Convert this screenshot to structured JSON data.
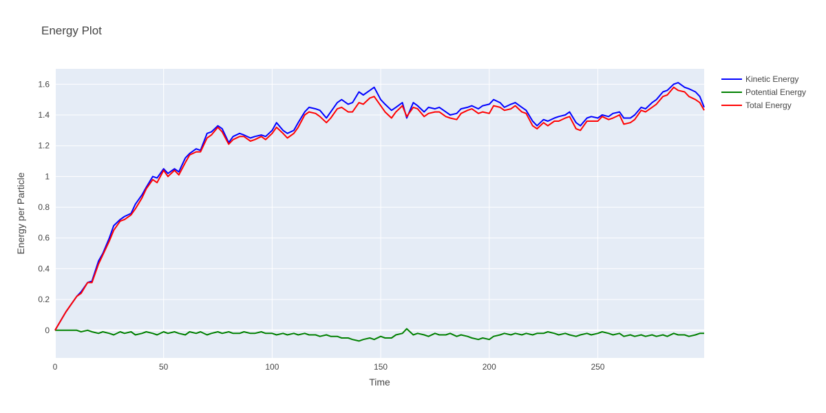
{
  "chart_data": {
    "type": "line",
    "title": "Energy Plot",
    "xlabel": "Time",
    "ylabel": "Energy per Particle",
    "xlim": [
      0,
      299
    ],
    "ylim": [
      -0.18,
      1.7
    ],
    "x_ticks": [
      0,
      50,
      100,
      150,
      200,
      250
    ],
    "x_tick_labels": [
      "0",
      "50",
      "100",
      "150",
      "200",
      "250"
    ],
    "y_ticks": [
      0,
      0.2,
      0.4,
      0.6,
      0.8,
      1.0,
      1.2,
      1.4,
      1.6
    ],
    "y_tick_labels": [
      "0",
      "0.2",
      "0.4",
      "0.6",
      "0.8",
      "1",
      "1.2",
      "1.4",
      "1.6"
    ],
    "grid": true,
    "legend_position": "top-right",
    "background_color": "#e5ecf6",
    "series": [
      {
        "name": "Kinetic Energy",
        "color": "#0000ff",
        "x": [
          0,
          5,
          10,
          12,
          15,
          17,
          20,
          22,
          25,
          27,
          30,
          32,
          35,
          37,
          40,
          42,
          45,
          47,
          50,
          52,
          55,
          57,
          60,
          62,
          65,
          67,
          70,
          72,
          75,
          77,
          80,
          82,
          85,
          87,
          90,
          92,
          95,
          97,
          100,
          102,
          105,
          107,
          110,
          112,
          115,
          117,
          120,
          122,
          125,
          127,
          130,
          132,
          135,
          137,
          140,
          142,
          145,
          147,
          150,
          152,
          155,
          157,
          160,
          162,
          165,
          167,
          170,
          172,
          175,
          177,
          180,
          182,
          185,
          187,
          190,
          192,
          195,
          197,
          200,
          202,
          205,
          207,
          210,
          212,
          215,
          217,
          220,
          222,
          225,
          227,
          230,
          232,
          235,
          237,
          240,
          242,
          245,
          247,
          250,
          252,
          255,
          257,
          260,
          262,
          265,
          267,
          270,
          272,
          275,
          277,
          280,
          282,
          285,
          287,
          290,
          292,
          295,
          297,
          299
        ],
        "y": [
          0,
          0.12,
          0.22,
          0.25,
          0.31,
          0.32,
          0.45,
          0.5,
          0.6,
          0.68,
          0.72,
          0.74,
          0.76,
          0.82,
          0.88,
          0.93,
          1.0,
          0.99,
          1.05,
          1.02,
          1.05,
          1.03,
          1.12,
          1.15,
          1.18,
          1.17,
          1.28,
          1.29,
          1.33,
          1.31,
          1.22,
          1.26,
          1.28,
          1.27,
          1.25,
          1.26,
          1.27,
          1.26,
          1.3,
          1.35,
          1.3,
          1.28,
          1.3,
          1.35,
          1.42,
          1.45,
          1.44,
          1.43,
          1.38,
          1.42,
          1.48,
          1.5,
          1.47,
          1.48,
          1.55,
          1.53,
          1.56,
          1.58,
          1.5,
          1.47,
          1.43,
          1.45,
          1.48,
          1.38,
          1.48,
          1.46,
          1.42,
          1.45,
          1.44,
          1.45,
          1.42,
          1.4,
          1.41,
          1.44,
          1.45,
          1.46,
          1.44,
          1.46,
          1.47,
          1.5,
          1.48,
          1.45,
          1.47,
          1.48,
          1.45,
          1.43,
          1.36,
          1.33,
          1.37,
          1.36,
          1.38,
          1.39,
          1.4,
          1.42,
          1.35,
          1.33,
          1.38,
          1.39,
          1.38,
          1.4,
          1.39,
          1.41,
          1.42,
          1.38,
          1.38,
          1.4,
          1.45,
          1.44,
          1.48,
          1.5,
          1.55,
          1.56,
          1.6,
          1.61,
          1.58,
          1.57,
          1.55,
          1.52,
          1.45
        ]
      },
      {
        "name": "Potential Energy",
        "color": "#008000",
        "x": [
          0,
          5,
          10,
          12,
          15,
          17,
          20,
          22,
          25,
          27,
          30,
          32,
          35,
          37,
          40,
          42,
          45,
          47,
          50,
          52,
          55,
          57,
          60,
          62,
          65,
          67,
          70,
          72,
          75,
          77,
          80,
          82,
          85,
          87,
          90,
          92,
          95,
          97,
          100,
          102,
          105,
          107,
          110,
          112,
          115,
          117,
          120,
          122,
          125,
          127,
          130,
          132,
          135,
          137,
          140,
          142,
          145,
          147,
          150,
          152,
          155,
          157,
          160,
          162,
          165,
          167,
          170,
          172,
          175,
          177,
          180,
          182,
          185,
          187,
          190,
          192,
          195,
          197,
          200,
          202,
          205,
          207,
          210,
          212,
          215,
          217,
          220,
          222,
          225,
          227,
          230,
          232,
          235,
          237,
          240,
          242,
          245,
          247,
          250,
          252,
          255,
          257,
          260,
          262,
          265,
          267,
          270,
          272,
          275,
          277,
          280,
          282,
          285,
          287,
          290,
          292,
          295,
          297,
          299
        ],
        "y": [
          0,
          0,
          0,
          -0.01,
          0,
          -0.01,
          -0.02,
          -0.01,
          -0.02,
          -0.03,
          -0.01,
          -0.02,
          -0.01,
          -0.03,
          -0.02,
          -0.01,
          -0.02,
          -0.03,
          -0.01,
          -0.02,
          -0.01,
          -0.02,
          -0.03,
          -0.01,
          -0.02,
          -0.01,
          -0.03,
          -0.02,
          -0.01,
          -0.02,
          -0.01,
          -0.02,
          -0.02,
          -0.01,
          -0.02,
          -0.02,
          -0.01,
          -0.02,
          -0.02,
          -0.03,
          -0.02,
          -0.03,
          -0.02,
          -0.03,
          -0.02,
          -0.03,
          -0.03,
          -0.04,
          -0.03,
          -0.04,
          -0.04,
          -0.05,
          -0.05,
          -0.06,
          -0.07,
          -0.06,
          -0.05,
          -0.06,
          -0.04,
          -0.05,
          -0.05,
          -0.03,
          -0.02,
          0.01,
          -0.03,
          -0.02,
          -0.03,
          -0.04,
          -0.02,
          -0.03,
          -0.03,
          -0.02,
          -0.04,
          -0.03,
          -0.04,
          -0.05,
          -0.06,
          -0.05,
          -0.06,
          -0.04,
          -0.03,
          -0.02,
          -0.03,
          -0.02,
          -0.03,
          -0.02,
          -0.03,
          -0.02,
          -0.02,
          -0.01,
          -0.02,
          -0.03,
          -0.02,
          -0.03,
          -0.04,
          -0.03,
          -0.02,
          -0.03,
          -0.02,
          -0.01,
          -0.02,
          -0.03,
          -0.02,
          -0.04,
          -0.03,
          -0.04,
          -0.03,
          -0.04,
          -0.03,
          -0.04,
          -0.03,
          -0.04,
          -0.02,
          -0.03,
          -0.03,
          -0.04,
          -0.03,
          -0.02,
          -0.02
        ]
      },
      {
        "name": "Total Energy",
        "color": "#ff0000",
        "x": [
          0,
          5,
          10,
          12,
          15,
          17,
          20,
          22,
          25,
          27,
          30,
          32,
          35,
          37,
          40,
          42,
          45,
          47,
          50,
          52,
          55,
          57,
          60,
          62,
          65,
          67,
          70,
          72,
          75,
          77,
          80,
          82,
          85,
          87,
          90,
          92,
          95,
          97,
          100,
          102,
          105,
          107,
          110,
          112,
          115,
          117,
          120,
          122,
          125,
          127,
          130,
          132,
          135,
          137,
          140,
          142,
          145,
          147,
          150,
          152,
          155,
          157,
          160,
          162,
          165,
          167,
          170,
          172,
          175,
          177,
          180,
          182,
          185,
          187,
          190,
          192,
          195,
          197,
          200,
          202,
          205,
          207,
          210,
          212,
          215,
          217,
          220,
          222,
          225,
          227,
          230,
          232,
          235,
          237,
          240,
          242,
          245,
          247,
          250,
          252,
          255,
          257,
          260,
          262,
          265,
          267,
          270,
          272,
          275,
          277,
          280,
          282,
          285,
          287,
          290,
          292,
          295,
          297,
          299
        ],
        "y": [
          0,
          0.12,
          0.22,
          0.24,
          0.31,
          0.31,
          0.43,
          0.49,
          0.58,
          0.65,
          0.71,
          0.72,
          0.75,
          0.79,
          0.86,
          0.92,
          0.98,
          0.96,
          1.04,
          1.0,
          1.04,
          1.01,
          1.09,
          1.14,
          1.16,
          1.16,
          1.25,
          1.27,
          1.32,
          1.29,
          1.21,
          1.24,
          1.26,
          1.26,
          1.23,
          1.24,
          1.26,
          1.24,
          1.28,
          1.32,
          1.28,
          1.25,
          1.28,
          1.32,
          1.4,
          1.42,
          1.41,
          1.39,
          1.35,
          1.38,
          1.44,
          1.45,
          1.42,
          1.42,
          1.48,
          1.47,
          1.51,
          1.52,
          1.46,
          1.42,
          1.38,
          1.42,
          1.46,
          1.39,
          1.45,
          1.44,
          1.39,
          1.41,
          1.42,
          1.42,
          1.39,
          1.38,
          1.37,
          1.41,
          1.43,
          1.44,
          1.41,
          1.42,
          1.41,
          1.46,
          1.45,
          1.43,
          1.44,
          1.46,
          1.42,
          1.41,
          1.33,
          1.31,
          1.35,
          1.33,
          1.36,
          1.36,
          1.38,
          1.39,
          1.31,
          1.3,
          1.36,
          1.36,
          1.36,
          1.39,
          1.37,
          1.38,
          1.4,
          1.34,
          1.35,
          1.37,
          1.43,
          1.42,
          1.45,
          1.47,
          1.52,
          1.53,
          1.58,
          1.56,
          1.55,
          1.52,
          1.5,
          1.48,
          1.43
        ]
      }
    ]
  }
}
